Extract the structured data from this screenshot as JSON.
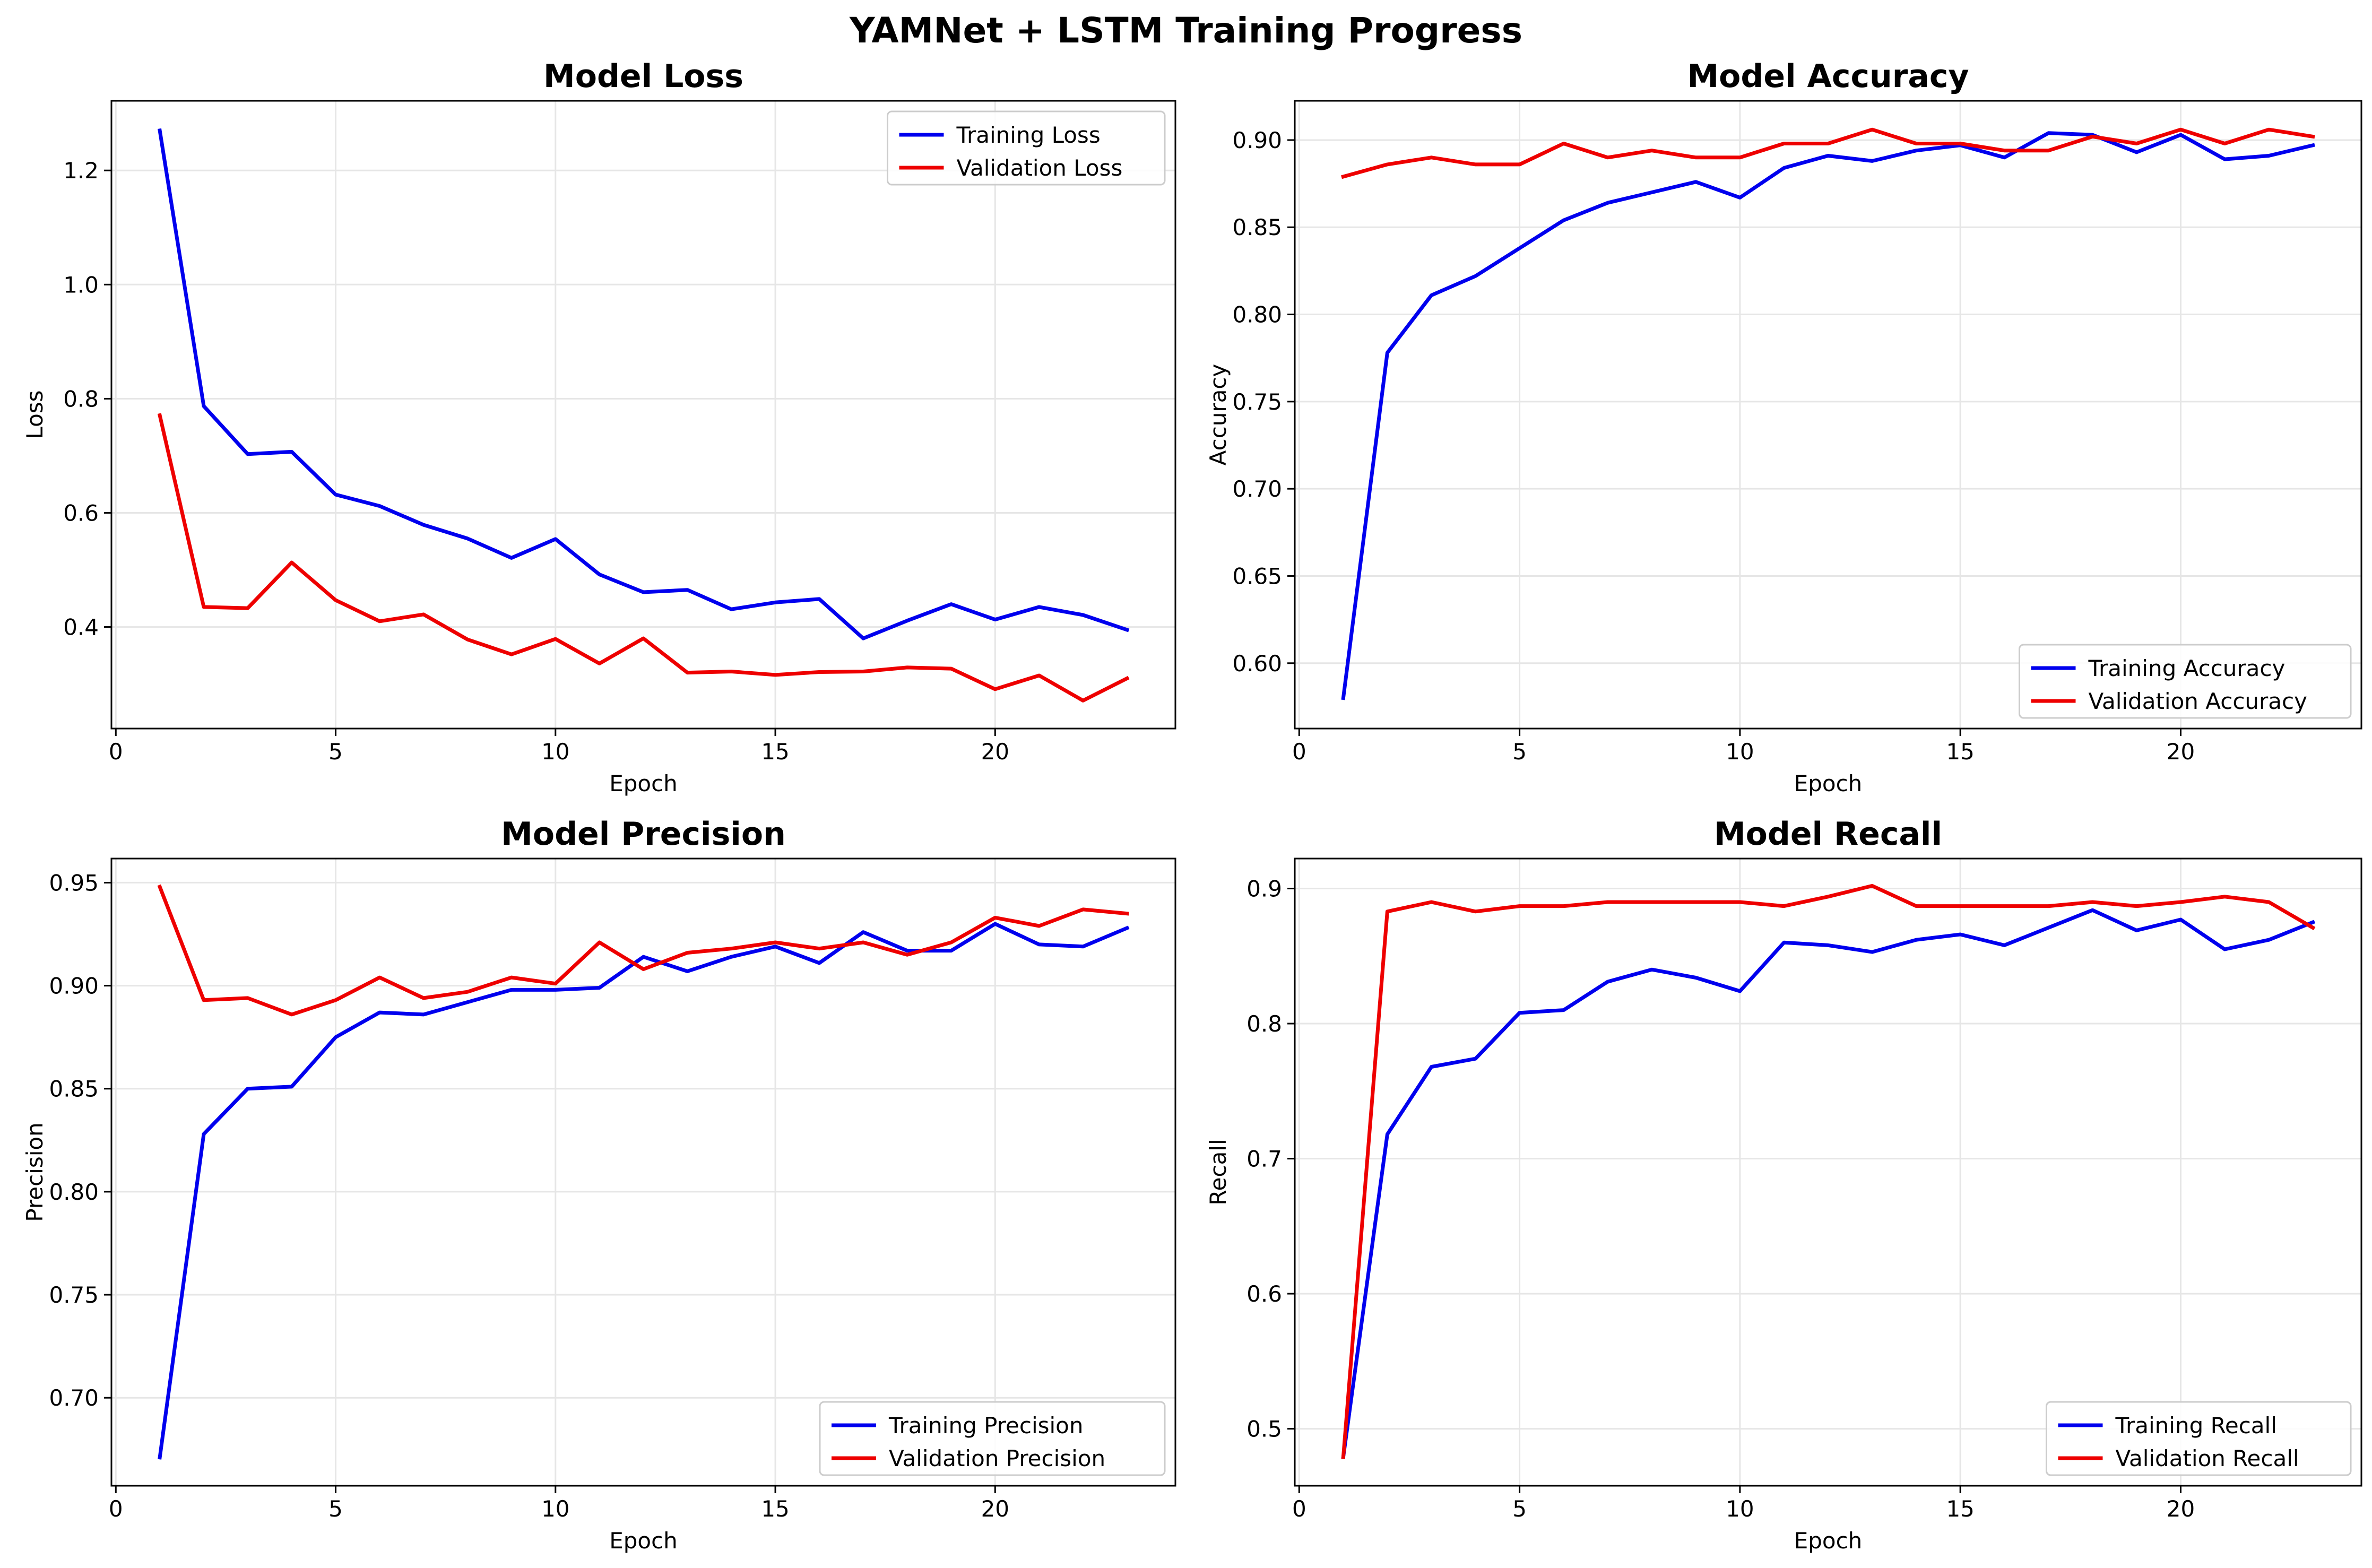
{
  "suptitle": "YAMNet + LSTM Training Progress",
  "colors": {
    "training": "#0000ee",
    "validation": "#ee0000",
    "grid": "#e6e6e6",
    "axis": "#000000"
  },
  "chart_data": [
    {
      "type": "line",
      "title": "Model Loss",
      "xlabel": "Epoch",
      "ylabel": "Loss",
      "xlim": [
        -0.1,
        24.1
      ],
      "ylim": [
        0.222,
        1.322
      ],
      "xticks": [
        0,
        5,
        10,
        15,
        20
      ],
      "yticks": [
        0.4,
        0.6,
        0.8,
        1.0,
        1.2
      ],
      "ytick_labels": [
        "0.4",
        "0.6",
        "0.8",
        "1.0",
        "1.2"
      ],
      "grid": true,
      "legend_position": "upper right",
      "x": [
        1,
        2,
        3,
        4,
        5,
        6,
        7,
        8,
        9,
        10,
        11,
        12,
        13,
        14,
        15,
        16,
        17,
        18,
        19,
        20,
        21,
        22,
        23
      ],
      "series": [
        {
          "name": "Training Loss",
          "color": "#0000ee",
          "values": [
            1.27,
            0.787,
            0.703,
            0.707,
            0.632,
            0.612,
            0.579,
            0.555,
            0.521,
            0.554,
            0.492,
            0.461,
            0.465,
            0.431,
            0.443,
            0.449,
            0.38,
            0.411,
            0.44,
            0.413,
            0.435,
            0.421,
            0.395
          ]
        },
        {
          "name": "Validation Loss",
          "color": "#ee0000",
          "values": [
            0.771,
            0.435,
            0.433,
            0.513,
            0.447,
            0.41,
            0.422,
            0.378,
            0.352,
            0.379,
            0.336,
            0.38,
            0.32,
            0.322,
            0.316,
            0.321,
            0.322,
            0.329,
            0.327,
            0.291,
            0.315,
            0.271,
            0.31
          ]
        }
      ]
    },
    {
      "type": "line",
      "title": "Model Accuracy",
      "xlabel": "Epoch",
      "ylabel": "Accuracy",
      "xlim": [
        -0.1,
        24.1
      ],
      "ylim": [
        0.5625,
        0.9225
      ],
      "xticks": [
        0,
        5,
        10,
        15,
        20
      ],
      "yticks": [
        0.6,
        0.65,
        0.7,
        0.75,
        0.8,
        0.85,
        0.9
      ],
      "ytick_labels": [
        "0.60",
        "0.65",
        "0.70",
        "0.75",
        "0.80",
        "0.85",
        "0.90"
      ],
      "grid": true,
      "legend_position": "lower right",
      "x": [
        1,
        2,
        3,
        4,
        5,
        6,
        7,
        8,
        9,
        10,
        11,
        12,
        13,
        14,
        15,
        16,
        17,
        18,
        19,
        20,
        21,
        22,
        23
      ],
      "series": [
        {
          "name": "Training Accuracy",
          "color": "#0000ee",
          "values": [
            0.58,
            0.778,
            0.811,
            0.822,
            0.838,
            0.854,
            0.864,
            0.87,
            0.876,
            0.867,
            0.884,
            0.891,
            0.888,
            0.894,
            0.897,
            0.89,
            0.904,
            0.903,
            0.893,
            0.903,
            0.889,
            0.891,
            0.897
          ]
        },
        {
          "name": "Validation Accuracy",
          "color": "#ee0000",
          "values": [
            0.879,
            0.886,
            0.89,
            0.886,
            0.886,
            0.898,
            0.89,
            0.894,
            0.89,
            0.89,
            0.898,
            0.898,
            0.906,
            0.898,
            0.898,
            0.894,
            0.894,
            0.902,
            0.898,
            0.906,
            0.898,
            0.906,
            0.902
          ]
        }
      ]
    },
    {
      "type": "line",
      "title": "Model Precision",
      "xlabel": "Epoch",
      "ylabel": "Precision",
      "xlim": [
        -0.1,
        24.1
      ],
      "ylim": [
        0.6573,
        0.9617
      ],
      "xticks": [
        0,
        5,
        10,
        15,
        20
      ],
      "yticks": [
        0.7,
        0.75,
        0.8,
        0.85,
        0.9,
        0.95
      ],
      "ytick_labels": [
        "0.70",
        "0.75",
        "0.80",
        "0.85",
        "0.90",
        "0.95"
      ],
      "grid": true,
      "legend_position": "lower right",
      "x": [
        1,
        2,
        3,
        4,
        5,
        6,
        7,
        8,
        9,
        10,
        11,
        12,
        13,
        14,
        15,
        16,
        17,
        18,
        19,
        20,
        21,
        22,
        23
      ],
      "series": [
        {
          "name": "Training Precision",
          "color": "#0000ee",
          "values": [
            0.671,
            0.828,
            0.85,
            0.851,
            0.875,
            0.887,
            0.886,
            0.892,
            0.898,
            0.898,
            0.899,
            0.914,
            0.907,
            0.914,
            0.919,
            0.911,
            0.926,
            0.917,
            0.917,
            0.93,
            0.92,
            0.919,
            0.928
          ]
        },
        {
          "name": "Validation Precision",
          "color": "#ee0000",
          "values": [
            0.948,
            0.893,
            0.894,
            0.886,
            0.893,
            0.904,
            0.894,
            0.897,
            0.904,
            0.901,
            0.921,
            0.908,
            0.916,
            0.918,
            0.921,
            0.918,
            0.921,
            0.915,
            0.921,
            0.933,
            0.929,
            0.937,
            0.935
          ]
        }
      ]
    },
    {
      "type": "line",
      "title": "Model Recall",
      "xlabel": "Epoch",
      "ylabel": "Recall",
      "xlim": [
        -0.1,
        24.1
      ],
      "ylim": [
        0.4578,
        0.9222
      ],
      "xticks": [
        0,
        5,
        10,
        15,
        20
      ],
      "yticks": [
        0.5,
        0.6,
        0.7,
        0.8,
        0.9
      ],
      "ytick_labels": [
        "0.5",
        "0.6",
        "0.7",
        "0.8",
        "0.9"
      ],
      "grid": true,
      "legend_position": "lower right",
      "x": [
        1,
        2,
        3,
        4,
        5,
        6,
        7,
        8,
        9,
        10,
        11,
        12,
        13,
        14,
        15,
        16,
        17,
        18,
        19,
        20,
        21,
        22,
        23
      ],
      "series": [
        {
          "name": "Training Recall",
          "color": "#0000ee",
          "values": [
            0.479,
            0.718,
            0.768,
            0.774,
            0.808,
            0.81,
            0.831,
            0.84,
            0.834,
            0.824,
            0.86,
            0.858,
            0.853,
            0.862,
            0.866,
            0.858,
            0.871,
            0.884,
            0.869,
            0.877,
            0.855,
            0.862,
            0.875
          ]
        },
        {
          "name": "Validation Recall",
          "color": "#ee0000",
          "values": [
            0.479,
            0.883,
            0.89,
            0.883,
            0.887,
            0.887,
            0.89,
            0.89,
            0.89,
            0.89,
            0.887,
            0.894,
            0.902,
            0.887,
            0.887,
            0.887,
            0.887,
            0.89,
            0.887,
            0.89,
            0.894,
            0.89,
            0.871
          ]
        }
      ]
    }
  ]
}
